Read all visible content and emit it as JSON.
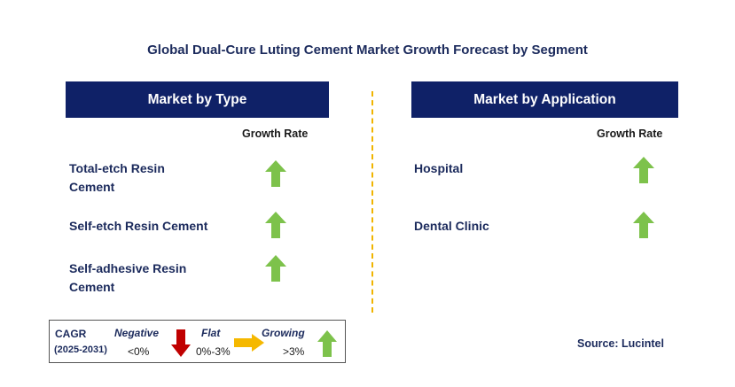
{
  "title": "Global Dual-Cure Luting Cement Market Growth Forecast by Segment",
  "left_panel": {
    "header": "Market by Type",
    "growth_label": "Growth Rate",
    "rows": [
      {
        "line1": "Total-etch Resin",
        "line2": "Cement",
        "trend": "growing"
      },
      {
        "line1": "Self-etch Resin Cement",
        "line2": "",
        "trend": "growing"
      },
      {
        "line1": "Self-adhesive Resin",
        "line2": "Cement",
        "trend": "growing"
      }
    ]
  },
  "right_panel": {
    "header": "Market by Application",
    "growth_label": "Growth Rate",
    "rows": [
      {
        "line1": "Hospital",
        "trend": "growing"
      },
      {
        "line1": "Dental Clinic",
        "trend": "growing"
      }
    ]
  },
  "legend": {
    "cagr_label": "CAGR",
    "period": "(2025-2031)",
    "negative_label": "Negative",
    "negative_range": "<0%",
    "flat_label": "Flat",
    "flat_range": "0%-3%",
    "growing_label": "Growing",
    "growing_range": ">3%"
  },
  "source": "Source: Lucintel",
  "colors": {
    "header_bg": "#0f2167",
    "growing": "#7dc24b",
    "negative": "#c00000",
    "flat": "#f5b800",
    "divider": "#f0b400"
  },
  "icons": {
    "growing": "up-arrow-icon",
    "negative": "down-arrow-icon",
    "flat": "right-arrow-icon"
  }
}
